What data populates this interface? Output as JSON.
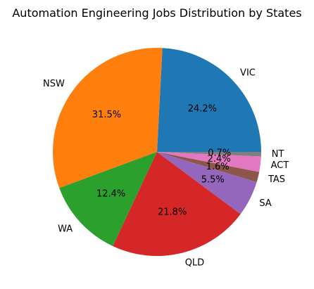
{
  "chart_data": {
    "type": "pie",
    "title": "Automation Engineering Jobs Distribution by States",
    "start_angle": 0,
    "direction": "counterclockwise",
    "slices": [
      {
        "label": "VIC",
        "value": 24.2,
        "pct_text": "24.2%",
        "color": "#1f77b4"
      },
      {
        "label": "NSW",
        "value": 31.5,
        "pct_text": "31.5%",
        "color": "#ff7f0e"
      },
      {
        "label": "WA",
        "value": 12.4,
        "pct_text": "12.4%",
        "color": "#2ca02c"
      },
      {
        "label": "QLD",
        "value": 21.8,
        "pct_text": "21.8%",
        "color": "#d62728"
      },
      {
        "label": "SA",
        "value": 5.5,
        "pct_text": "5.5%",
        "color": "#9467bd"
      },
      {
        "label": "TAS",
        "value": 1.6,
        "pct_text": "1.6%",
        "color": "#8c564b"
      },
      {
        "label": "ACT",
        "value": 2.4,
        "pct_text": "2.4%",
        "color": "#e377c2"
      },
      {
        "label": "NT",
        "value": 0.7,
        "pct_text": "0.7%",
        "color": "#7f7f7f"
      }
    ]
  }
}
